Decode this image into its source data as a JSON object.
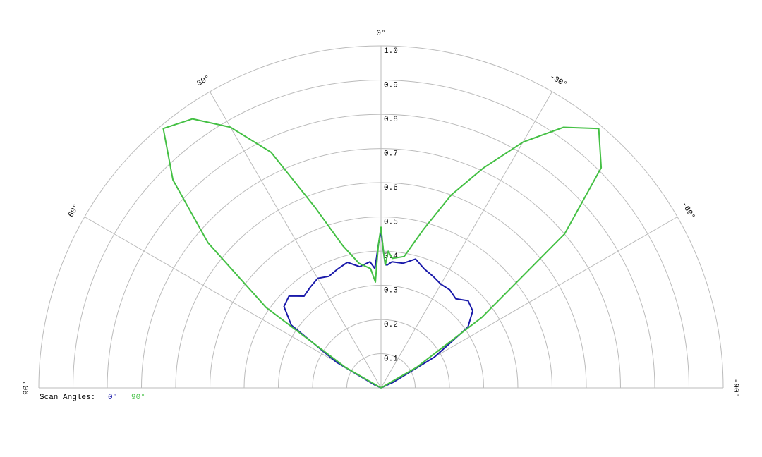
{
  "chart_data": {
    "type": "polar",
    "legend_title": "Scan Angles:",
    "x": [
      -90,
      -85,
      -80,
      -75,
      -70,
      -65,
      -60,
      -55,
      -50,
      -45,
      -40,
      -35,
      -30,
      -25,
      -20,
      -15,
      -10,
      -5,
      -3,
      -2,
      -1,
      0,
      1,
      2,
      3,
      5,
      10,
      15,
      20,
      25,
      30,
      35,
      40,
      45,
      50,
      55,
      60,
      65,
      70,
      75,
      80,
      85,
      90
    ],
    "series": [
      {
        "name": "0°",
        "color": "#1a1aaa",
        "values": [
          0,
          0,
          0,
          0,
          0,
          0.04,
          0.18,
          0.31,
          0.35,
          0.36,
          0.34,
          0.35,
          0.35,
          0.36,
          0.37,
          0.39,
          0.37,
          0.37,
          0.36,
          0.36,
          0.4,
          0.46,
          0.42,
          0.38,
          0.35,
          0.37,
          0.36,
          0.38,
          0.37,
          0.36,
          0.37,
          0.36,
          0.35,
          0.38,
          0.37,
          0.32,
          0.15,
          0.02,
          0,
          0,
          0,
          0,
          0
        ]
      },
      {
        "name": "90°",
        "color": "#44c044",
        "values": [
          0,
          0,
          0,
          0,
          0,
          0,
          0.12,
          0.36,
          0.7,
          0.91,
          0.99,
          0.93,
          0.83,
          0.71,
          0.6,
          0.48,
          0.39,
          0.38,
          0.4,
          0.36,
          0.4,
          0.47,
          0.42,
          0.36,
          0.31,
          0.35,
          0.37,
          0.43,
          0.56,
          0.76,
          0.88,
          0.96,
          0.99,
          0.86,
          0.66,
          0.41,
          0.12,
          0,
          0,
          0,
          0,
          0,
          0
        ]
      }
    ],
    "rlim": [
      0,
      1
    ],
    "rticks": [
      0.1,
      0.2,
      0.3,
      0.4,
      0.5,
      0.6,
      0.7,
      0.8,
      0.9,
      {
        "value": 1,
        "label": "1.0"
      }
    ],
    "xlim": [
      -90,
      90
    ],
    "xticks": [
      {
        "value": 90,
        "label": "90°"
      },
      {
        "value": 60,
        "label": "60°"
      },
      {
        "value": 30,
        "label": "30°"
      },
      {
        "value": 0,
        "label": "0°"
      },
      {
        "value": -30,
        "label": "-30°"
      },
      {
        "value": -60,
        "label": "-60°"
      },
      {
        "value": -90,
        "label": "-90°"
      }
    ],
    "grid": true
  }
}
